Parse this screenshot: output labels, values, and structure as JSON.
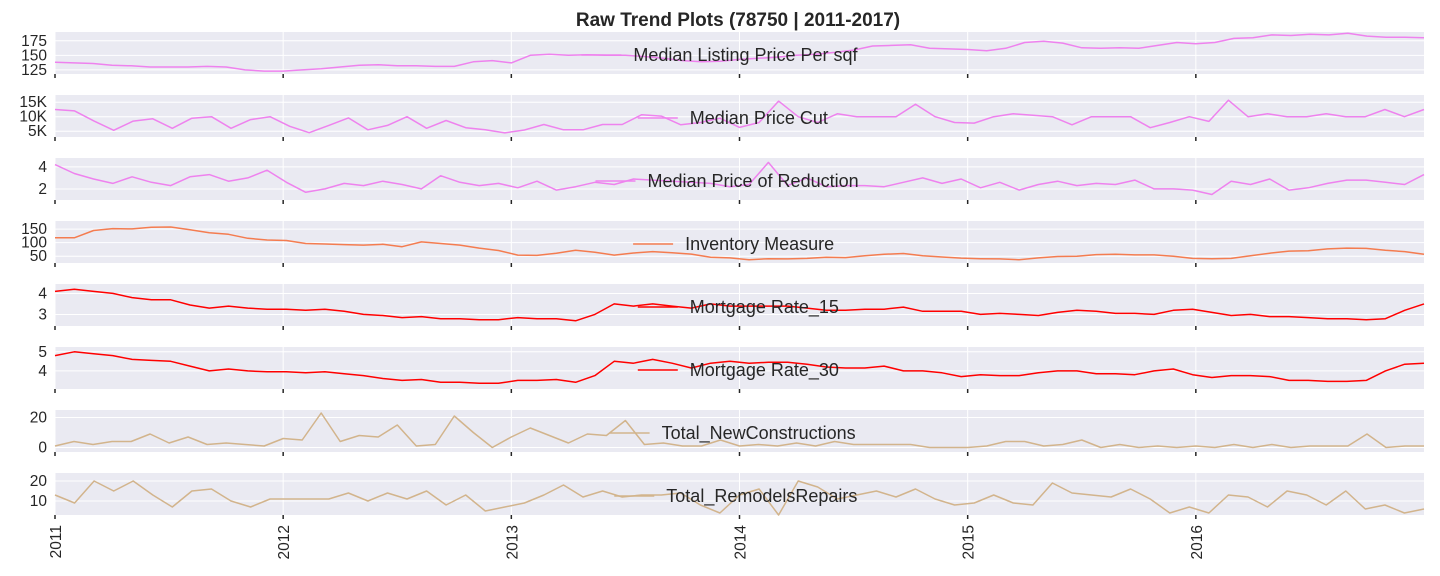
{
  "chart_data": {
    "type": "line",
    "title": "Raw Trend Plots (78750 | 2011-2017)",
    "x_tick_labels": [
      "2011",
      "2012",
      "2013",
      "2014",
      "2015",
      "2016"
    ],
    "x_range": [
      "2011-01",
      "2016-12"
    ],
    "grid": true,
    "legend_placement": "center",
    "panels": [
      {
        "name": "Median Listing Price Per sqf",
        "color": "#ee82ee",
        "ylim": [
          118,
          190
        ],
        "yticks": [
          125,
          150,
          175
        ],
        "ytick_labels": [
          "125",
          "150",
          "175"
        ],
        "values": [
          138,
          137,
          136,
          133,
          132,
          130,
          130,
          130,
          131,
          130,
          125,
          123,
          123,
          125,
          127,
          130,
          133,
          134,
          132,
          132,
          131,
          131,
          139,
          141,
          137,
          150,
          152,
          150,
          151,
          150,
          150,
          148,
          145,
          141,
          139,
          140,
          143,
          145,
          147,
          150,
          152,
          155,
          159,
          166,
          167,
          168,
          162,
          161,
          160,
          158,
          162,
          172,
          174,
          171,
          163,
          162,
          163,
          162,
          167,
          172,
          170,
          172,
          179,
          180,
          185,
          184,
          186,
          185,
          188,
          183,
          181,
          181,
          180
        ]
      },
      {
        "name": "Median Price Cut",
        "color": "#ee82ee",
        "ylim": [
          3000,
          17500
        ],
        "yticks": [
          5000,
          10000,
          15000
        ],
        "ytick_labels": [
          "5K",
          "10K",
          "15K"
        ],
        "values": [
          12500,
          12000,
          8500,
          5300,
          8500,
          9300,
          6000,
          9500,
          10000,
          6000,
          9000,
          10000,
          6700,
          4500,
          7000,
          9600,
          5500,
          7000,
          10000,
          6000,
          8700,
          6200,
          5500,
          4400,
          5400,
          7300,
          5500,
          5500,
          7300,
          7300,
          10700,
          10200,
          7200,
          8000,
          9500,
          6300,
          8000,
          15400,
          10000,
          8000,
          11000,
          10000,
          10000,
          10000,
          14300,
          10000,
          8000,
          7800,
          10000,
          11000,
          10500,
          10000,
          7200,
          10000,
          10000,
          10000,
          6200,
          8000,
          10000,
          8400,
          15700,
          10000,
          11000,
          10000,
          10000,
          11000,
          10000,
          10000,
          12500,
          10000,
          12500
        ]
      },
      {
        "name": "Median Price of Reduction",
        "color": "#ee82ee",
        "ylim": [
          1.0,
          4.8
        ],
        "yticks": [
          2,
          4
        ],
        "ytick_labels": [
          "2",
          "4"
        ],
        "values": [
          4.2,
          3.4,
          2.9,
          2.5,
          3.1,
          2.6,
          2.3,
          3.1,
          3.3,
          2.7,
          3.0,
          3.7,
          2.6,
          1.7,
          2.0,
          2.5,
          2.3,
          2.7,
          2.4,
          2.0,
          3.2,
          2.6,
          2.3,
          2.5,
          2.1,
          2.7,
          1.9,
          2.2,
          2.6,
          2.4,
          2.9,
          2.8,
          2.7,
          2.6,
          2.5,
          2.2,
          2.4,
          4.4,
          2.3,
          3.0,
          2.2,
          2.3,
          2.3,
          2.2,
          2.6,
          3.0,
          2.5,
          2.9,
          2.1,
          2.6,
          1.9,
          2.4,
          2.7,
          2.3,
          2.5,
          2.4,
          2.8,
          2.0,
          2.0,
          1.9,
          1.5,
          2.7,
          2.4,
          2.9,
          1.9,
          2.1,
          2.5,
          2.8,
          2.8,
          2.6,
          2.4,
          3.3
        ]
      },
      {
        "name": "Inventory Measure",
        "color": "#f47c50",
        "ylim": [
          25,
          180
        ],
        "yticks": [
          50,
          100,
          150
        ],
        "ytick_labels": [
          "50",
          "100",
          "150"
        ],
        "values": [
          118,
          118,
          145,
          152,
          151,
          157,
          158,
          148,
          137,
          131,
          116,
          110,
          108,
          97,
          95,
          93,
          91,
          94,
          85,
          103,
          97,
          91,
          80,
          71,
          54,
          53,
          61,
          72,
          65,
          54,
          62,
          67,
          63,
          58,
          46,
          44,
          37,
          41,
          40,
          42,
          46,
          45,
          52,
          57,
          60,
          52,
          47,
          43,
          41,
          40,
          37,
          44,
          49,
          50,
          56,
          57,
          55,
          55,
          50,
          42,
          41,
          42,
          52,
          61,
          69,
          70,
          77,
          80,
          79,
          72,
          67,
          57
        ]
      },
      {
        "name": "Mortgage Rate_15",
        "color": "#ff0000",
        "ylim": [
          2.45,
          4.45
        ],
        "yticks": [
          3,
          4
        ],
        "ytick_labels": [
          "3",
          "4"
        ],
        "values": [
          4.1,
          4.2,
          4.1,
          4.0,
          3.8,
          3.7,
          3.7,
          3.45,
          3.3,
          3.4,
          3.3,
          3.25,
          3.25,
          3.2,
          3.25,
          3.15,
          3.0,
          2.95,
          2.85,
          2.9,
          2.8,
          2.8,
          2.75,
          2.75,
          2.85,
          2.8,
          2.8,
          2.7,
          3.0,
          3.5,
          3.4,
          3.5,
          3.4,
          3.3,
          3.5,
          3.4,
          3.4,
          3.4,
          3.4,
          3.3,
          3.2,
          3.2,
          3.25,
          3.25,
          3.35,
          3.15,
          3.15,
          3.15,
          3.0,
          3.05,
          3.0,
          2.95,
          3.1,
          3.2,
          3.15,
          3.05,
          3.05,
          3.0,
          3.2,
          3.25,
          3.1,
          2.95,
          3.0,
          2.9,
          2.9,
          2.85,
          2.8,
          2.8,
          2.75,
          2.8,
          3.2,
          3.5
        ]
      },
      {
        "name": "Mortgage Rate_30",
        "color": "#ff0000",
        "ylim": [
          3.05,
          5.25
        ],
        "yticks": [
          4,
          5
        ],
        "ytick_labels": [
          "4",
          "5"
        ],
        "values": [
          4.8,
          5.0,
          4.9,
          4.8,
          4.6,
          4.55,
          4.5,
          4.25,
          4.0,
          4.1,
          4.0,
          3.95,
          3.95,
          3.9,
          3.95,
          3.85,
          3.75,
          3.6,
          3.5,
          3.55,
          3.4,
          3.4,
          3.35,
          3.35,
          3.5,
          3.5,
          3.55,
          3.4,
          3.75,
          4.5,
          4.4,
          4.6,
          4.4,
          4.15,
          4.4,
          4.5,
          4.4,
          4.45,
          4.45,
          4.35,
          4.2,
          4.15,
          4.15,
          4.25,
          4.0,
          4.0,
          3.9,
          3.7,
          3.8,
          3.75,
          3.75,
          3.9,
          4.0,
          4.0,
          3.85,
          3.85,
          3.8,
          4.0,
          4.1,
          3.8,
          3.65,
          3.75,
          3.75,
          3.7,
          3.5,
          3.5,
          3.45,
          3.45,
          3.5,
          4.0,
          4.35,
          4.4
        ]
      },
      {
        "name": "Total_NewConstructions",
        "color": "#d2b48c",
        "ylim": [
          -3,
          25
        ],
        "yticks": [
          0,
          20
        ],
        "ytick_labels": [
          "0",
          "20"
        ],
        "values": [
          1,
          4,
          2,
          4,
          4,
          9,
          3,
          7,
          2,
          3,
          2,
          1,
          6,
          5,
          23,
          4,
          8,
          7,
          15,
          1,
          2,
          21,
          10,
          0,
          7,
          13,
          8,
          3,
          9,
          8,
          18,
          2,
          3,
          1,
          1,
          5,
          1,
          2,
          1,
          3,
          1,
          4,
          2,
          2,
          2,
          2,
          0,
          0,
          0,
          1,
          4,
          4,
          1,
          2,
          5,
          0,
          2,
          0,
          1,
          0,
          1,
          0,
          2,
          0,
          2,
          0,
          1,
          1,
          1,
          9,
          0,
          1,
          1
        ]
      },
      {
        "name": "Total_RemodelsRepairs",
        "color": "#d2b48c",
        "ylim": [
          3,
          24
        ],
        "yticks": [
          10,
          20
        ],
        "ytick_labels": [
          "10",
          "20"
        ],
        "values": [
          13,
          9,
          20,
          15,
          20,
          13,
          7,
          15,
          16,
          10,
          7,
          11,
          11,
          11,
          11,
          14,
          10,
          14,
          11,
          15,
          8,
          13,
          5,
          7,
          9,
          13,
          18,
          12,
          15,
          12,
          13,
          13,
          14,
          8,
          4,
          13,
          16,
          3,
          20,
          17,
          11,
          13,
          15,
          12,
          16,
          11,
          8,
          9,
          13,
          9,
          8,
          19,
          14,
          13,
          12,
          16,
          11,
          4,
          7,
          4,
          13,
          12,
          7,
          15,
          13,
          8,
          15,
          6,
          8,
          4,
          6
        ]
      }
    ]
  }
}
